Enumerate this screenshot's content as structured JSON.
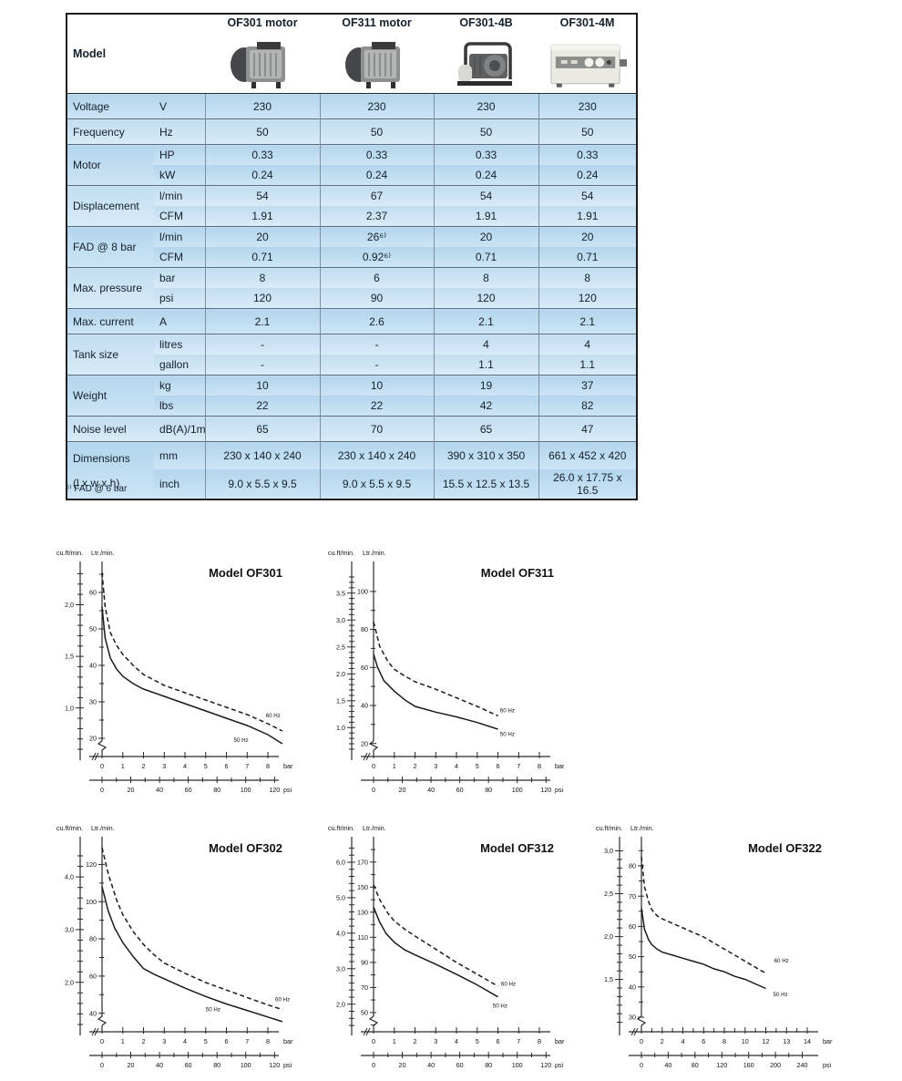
{
  "table": {
    "header": {
      "model_label": "Model",
      "columns": [
        {
          "label": "OF301 motor",
          "image": "compressor-motor"
        },
        {
          "label": "OF311 motor",
          "image": "compressor-motor"
        },
        {
          "label": "OF301-4B",
          "image": "compressor-frame"
        },
        {
          "label": "OF301-4M",
          "image": "compressor-cabinet"
        }
      ]
    },
    "groups": [
      {
        "label": "Voltage",
        "rows": [
          {
            "unit": "V",
            "values": [
              "230",
              "230",
              "230",
              "230"
            ]
          }
        ]
      },
      {
        "label": "Frequency",
        "rows": [
          {
            "unit": "Hz",
            "values": [
              "50",
              "50",
              "50",
              "50"
            ]
          }
        ]
      },
      {
        "label": "Motor",
        "rows": [
          {
            "unit": "HP",
            "values": [
              "0.33",
              "0.33",
              "0.33",
              "0.33"
            ]
          },
          {
            "unit": "kW",
            "values": [
              "0.24",
              "0.24",
              "0.24",
              "0.24"
            ]
          }
        ]
      },
      {
        "label": "Displacement",
        "rows": [
          {
            "unit": "l/min",
            "values": [
              "54",
              "67",
              "54",
              "54"
            ]
          },
          {
            "unit": "CFM",
            "values": [
              "1.91",
              "2.37",
              "1.91",
              "1.91"
            ]
          }
        ]
      },
      {
        "label": "FAD @ 8 bar",
        "rows": [
          {
            "unit": "l/min",
            "values": [
              "20",
              "26⁶⁾",
              "20",
              "20"
            ]
          },
          {
            "unit": "CFM",
            "values": [
              "0.71",
              "0.92⁶⁾",
              "0.71",
              "0.71"
            ]
          }
        ]
      },
      {
        "label": "Max. pressure",
        "rows": [
          {
            "unit": "bar",
            "values": [
              "8",
              "6",
              "8",
              "8"
            ]
          },
          {
            "unit": "psi",
            "values": [
              "120",
              "90",
              "120",
              "120"
            ]
          }
        ]
      },
      {
        "label": "Max. current",
        "rows": [
          {
            "unit": "A",
            "values": [
              "2.1",
              "2.6",
              "2.1",
              "2.1"
            ]
          }
        ]
      },
      {
        "label": "Tank size",
        "rows": [
          {
            "unit": "litres",
            "values": [
              "-",
              "-",
              "4",
              "4"
            ]
          },
          {
            "unit": "gallon",
            "values": [
              "-",
              "-",
              "1.1",
              "1.1"
            ]
          }
        ]
      },
      {
        "label": "Weight",
        "rows": [
          {
            "unit": "kg",
            "values": [
              "10",
              "10",
              "19",
              "37"
            ]
          },
          {
            "unit": "lbs",
            "values": [
              "22",
              "22",
              "42",
              "82"
            ]
          }
        ]
      },
      {
        "label": "Noise level",
        "rows": [
          {
            "unit": "dB(A)/1m",
            "values": [
              "65",
              "70",
              "65",
              "47"
            ]
          }
        ]
      },
      {
        "label": "Dimensions",
        "sublabel": "(l x w x h)",
        "rows": [
          {
            "unit": "mm",
            "values": [
              "230 x 140 x 240",
              "230 x 140 x 240",
              "390 x 310 x 350",
              "661 x 452 x 420"
            ]
          },
          {
            "unit": "inch",
            "values": [
              "9.0 x 5.5 x 9.5",
              "9.0 x 5.5 x 9.5",
              "15.5 x 12.5 x 13.5",
              "26.0 x 17.75 x 16.5"
            ]
          }
        ]
      }
    ]
  },
  "footnote": "⁶⁾ FAD @ 6 bar",
  "chart_data": [
    {
      "type": "line",
      "title": "Model OF301",
      "y_axis_label": "cu.ft/min.",
      "y2_axis_label": "Ltr./min.",
      "x_unit": "bar",
      "x2_unit": "psi",
      "ltr_ticks": [
        20,
        30,
        40,
        50,
        60
      ],
      "ltr_min": 16.5,
      "ltr_max": 65.5,
      "cuft_ticks": [
        {
          "v": 1.0,
          "label": "1,0"
        },
        {
          "v": 1.5,
          "label": "1,5"
        },
        {
          "v": 2.0,
          "label": "2,0"
        }
      ],
      "cuft_minor_step": 0.1,
      "bar_ticks": [
        0,
        1,
        2,
        3,
        4,
        5,
        6,
        7,
        8
      ],
      "bar_minor": false,
      "psi_ticks": [
        0,
        20,
        40,
        60,
        80,
        100,
        120
      ],
      "psi_span": 1.04,
      "series": [
        {
          "name": "50 Hz",
          "style": "solid",
          "label_at": [
            6.35,
            19.0
          ],
          "points": [
            [
              0,
              56
            ],
            [
              0.15,
              47.5
            ],
            [
              0.4,
              42
            ],
            [
              0.7,
              39
            ],
            [
              1,
              37
            ],
            [
              1.5,
              35
            ],
            [
              2,
              33.5
            ],
            [
              3,
              31.5
            ],
            [
              4,
              29.5
            ],
            [
              5,
              27.5
            ],
            [
              6,
              25.5
            ],
            [
              7,
              23.5
            ],
            [
              8,
              21
            ],
            [
              8.7,
              18.5
            ]
          ]
        },
        {
          "name": "60 Hz",
          "style": "dashed",
          "label_at": [
            7.9,
            25.8
          ],
          "points": [
            [
              0,
              65.4
            ],
            [
              0.15,
              56
            ],
            [
              0.4,
              49
            ],
            [
              0.7,
              45.5
            ],
            [
              1,
              43
            ],
            [
              1.5,
              40
            ],
            [
              2,
              37.5
            ],
            [
              3,
              34.5
            ],
            [
              4,
              32.5
            ],
            [
              5,
              30.5
            ],
            [
              6,
              28.5
            ],
            [
              7,
              26.5
            ],
            [
              8,
              24
            ],
            [
              8.7,
              22
            ]
          ]
        }
      ]
    },
    {
      "type": "line",
      "title": "Model OF311",
      "y_axis_label": "cu.ft/min.",
      "y2_axis_label": "Ltr./min.",
      "x_unit": "bar",
      "x2_unit": "psi",
      "ltr_ticks": [
        20,
        40,
        60,
        80,
        100
      ],
      "ltr_min": 16,
      "ltr_max": 110,
      "cuft_ticks": [
        {
          "v": 1.0,
          "label": "1,0"
        },
        {
          "v": 1.5,
          "label": "1,5"
        },
        {
          "v": 2.0,
          "label": "2,0"
        },
        {
          "v": 2.5,
          "label": "2,5"
        },
        {
          "v": 3.0,
          "label": "3,0"
        },
        {
          "v": 3.5,
          "label": "3,5"
        }
      ],
      "cuft_minor_step": 0.1,
      "bar_ticks": [
        0,
        1,
        2,
        3,
        4,
        5,
        6,
        7,
        8
      ],
      "bar_minor": false,
      "psi_ticks": [
        0,
        20,
        40,
        60,
        80,
        100,
        120
      ],
      "psi_span": 1.04,
      "series": [
        {
          "name": "50 Hz",
          "style": "solid",
          "label_at": [
            6.1,
            24.0
          ],
          "points": [
            [
              0,
              67
            ],
            [
              0.2,
              60
            ],
            [
              0.5,
              53
            ],
            [
              1,
              47.5
            ],
            [
              1.5,
              43
            ],
            [
              2,
              39.5
            ],
            [
              2.5,
              38
            ],
            [
              3,
              36.5
            ],
            [
              4,
              34
            ],
            [
              5,
              31
            ],
            [
              6,
              27.5
            ]
          ]
        },
        {
          "name": "60 Hz",
          "style": "dashed",
          "label_at": [
            6.1,
            36.5
          ],
          "points": [
            [
              0,
              84
            ],
            [
              0.3,
              71
            ],
            [
              0.7,
              63
            ],
            [
              1,
              59
            ],
            [
              1.5,
              55.5
            ],
            [
              2,
              52.5
            ],
            [
              3,
              48.5
            ],
            [
              4,
              44
            ],
            [
              5,
              39.5
            ],
            [
              6,
              34.5
            ]
          ]
        }
      ]
    },
    {
      "type": "line",
      "title": "Model OF302",
      "y_axis_label": "cu.ft/min.",
      "y2_axis_label": "Ltr./min.",
      "x_unit": "bar",
      "x2_unit": "psi",
      "ltr_ticks": [
        40,
        60,
        80,
        100,
        120
      ],
      "ltr_min": 33,
      "ltr_max": 129,
      "cuft_ticks": [
        {
          "v": 2.0,
          "label": "2,0"
        },
        {
          "v": 3.0,
          "label": "3,0"
        },
        {
          "v": 4.0,
          "label": "4,0"
        }
      ],
      "cuft_minor_step": 0.2,
      "bar_ticks": [
        0,
        1,
        2,
        3,
        4,
        5,
        6,
        7,
        8
      ],
      "bar_minor": false,
      "psi_ticks": [
        0,
        20,
        40,
        60,
        80,
        100,
        120
      ],
      "psi_span": 1.04,
      "series": [
        {
          "name": "50 Hz",
          "style": "solid",
          "label_at": [
            5.0,
            41.0
          ],
          "points": [
            [
              0,
              108
            ],
            [
              0.3,
              95
            ],
            [
              0.6,
              86
            ],
            [
              1,
              78
            ],
            [
              1.5,
              70.5
            ],
            [
              2,
              64
            ],
            [
              2.5,
              61
            ],
            [
              3,
              58.5
            ],
            [
              4,
              53.5
            ],
            [
              5,
              49
            ],
            [
              6,
              45
            ],
            [
              7,
              41.5
            ],
            [
              8,
              38
            ],
            [
              8.7,
              35.5
            ]
          ]
        },
        {
          "name": "60 Hz",
          "style": "dashed",
          "label_at": [
            8.35,
            46.5
          ],
          "points": [
            [
              0,
              129
            ],
            [
              0.3,
              115
            ],
            [
              0.7,
              101
            ],
            [
              1,
              93
            ],
            [
              1.5,
              84
            ],
            [
              2,
              77
            ],
            [
              2.5,
              71.5
            ],
            [
              3,
              67
            ],
            [
              4,
              61.5
            ],
            [
              5,
              56.5
            ],
            [
              6,
              52.5
            ],
            [
              7,
              48.5
            ],
            [
              8,
              44.5
            ],
            [
              8.7,
              42
            ]
          ]
        }
      ]
    },
    {
      "type": "line",
      "title": "Model OF312",
      "y_axis_label": "cu.ft/min.",
      "y2_axis_label": "Ltr./min.",
      "x_unit": "bar",
      "x2_unit": "psi",
      "ltr_ticks": [
        50,
        70,
        90,
        110,
        130,
        150,
        170
      ],
      "ltr_min": 39,
      "ltr_max": 181.5,
      "cuft_ticks": [
        {
          "v": 2.0,
          "label": "2,0"
        },
        {
          "v": 3.0,
          "label": "3,0"
        },
        {
          "v": 4.0,
          "label": "4,0"
        },
        {
          "v": 5.0,
          "label": "5,0"
        },
        {
          "v": 6.0,
          "label": "6,0"
        }
      ],
      "cuft_minor_step": 0.2,
      "bar_ticks": [
        0,
        1,
        2,
        3,
        4,
        5,
        6,
        7,
        8
      ],
      "bar_minor": false,
      "psi_ticks": [
        0,
        20,
        40,
        60,
        80,
        100,
        120
      ],
      "psi_span": 1.04,
      "series": [
        {
          "name": "50 Hz",
          "style": "solid",
          "label_at": [
            5.75,
            54.0
          ],
          "points": [
            [
              0,
              134
            ],
            [
              0.3,
              122
            ],
            [
              0.6,
              113
            ],
            [
              1,
              106
            ],
            [
              1.5,
              100
            ],
            [
              2,
              96
            ],
            [
              3,
              88.5
            ],
            [
              4,
              80.5
            ],
            [
              5,
              72
            ],
            [
              6,
              62.5
            ]
          ]
        },
        {
          "name": "60 Hz",
          "style": "dashed",
          "label_at": [
            6.15,
            71.5
          ],
          "points": [
            [
              0,
              152
            ],
            [
              0.3,
              140
            ],
            [
              0.7,
              129
            ],
            [
              1,
              123
            ],
            [
              1.5,
              116.5
            ],
            [
              2,
              111
            ],
            [
              3,
              100.5
            ],
            [
              4,
              90
            ],
            [
              5,
              80.5
            ],
            [
              6,
              71
            ]
          ]
        }
      ]
    },
    {
      "type": "line",
      "title": "Model OF322",
      "y_axis_label": "cu.ft/min.",
      "y2_axis_label": "Ltr./min.",
      "x_unit": "bar",
      "x2_unit": "psi",
      "ltr_ticks": [
        30,
        40,
        50,
        60,
        70,
        80
      ],
      "ltr_min": 27,
      "ltr_max": 86,
      "cuft_ticks": [
        {
          "v": 1.5,
          "label": "1,5"
        },
        {
          "v": 2.0,
          "label": "2,0"
        },
        {
          "v": 2.5,
          "label": "2,5"
        },
        {
          "v": 3.0,
          "label": "3,0"
        }
      ],
      "cuft_minor_step": 0.1,
      "bar_ticks": [
        0,
        2,
        4,
        6,
        8,
        10,
        12,
        13,
        14
      ],
      "bar_minor": true,
      "psi_ticks": [
        0,
        40,
        80,
        120,
        160,
        200,
        240
      ],
      "psi_span": 0.97,
      "series": [
        {
          "name": "50 Hz",
          "style": "solid",
          "label_at": [
            12.35,
            37.0
          ],
          "points": [
            [
              0,
              66
            ],
            [
              0.3,
              59
            ],
            [
              0.7,
              55.5
            ],
            [
              1,
              54
            ],
            [
              1.5,
              52.5
            ],
            [
              2,
              51.5
            ],
            [
              3,
              50.5
            ],
            [
              4,
              49.5
            ],
            [
              5,
              48.5
            ],
            [
              6,
              47.5
            ],
            [
              7,
              46
            ],
            [
              8,
              45
            ],
            [
              9,
              43.5
            ],
            [
              10,
              42.5
            ],
            [
              11,
              41
            ],
            [
              12,
              39.5
            ]
          ]
        },
        {
          "name": "60 Hz",
          "style": "dashed",
          "label_at": [
            12.4,
            48.0
          ],
          "points": [
            [
              0,
              83
            ],
            [
              0.3,
              73
            ],
            [
              0.7,
              68
            ],
            [
              1,
              65.5
            ],
            [
              1.5,
              63.5
            ],
            [
              2,
              62.5
            ],
            [
              3,
              61
            ],
            [
              4,
              59.5
            ],
            [
              5,
              58
            ],
            [
              6,
              56.5
            ],
            [
              7,
              54.5
            ],
            [
              8,
              52.5
            ],
            [
              9,
              50.5
            ],
            [
              10,
              48.5
            ],
            [
              11,
              46.5
            ],
            [
              12,
              44.5
            ]
          ]
        }
      ]
    }
  ]
}
